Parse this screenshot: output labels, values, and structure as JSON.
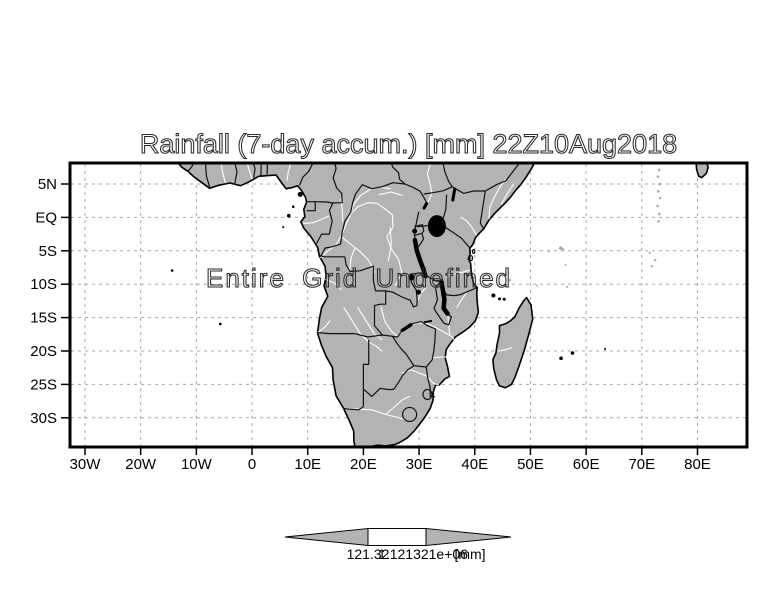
{
  "title": "Rainfall (7-day accum.) [mm] 22Z10Aug2018",
  "message": "Entire Grid Undefined",
  "axes": {
    "x_ticks": [
      "30W",
      "20W",
      "10W",
      "0",
      "10E",
      "20E",
      "30E",
      "40E",
      "50E",
      "60E",
      "70E",
      "80E"
    ],
    "y_ticks": [
      "5N",
      "EQ",
      "5S",
      "10S",
      "15S",
      "20S",
      "25S",
      "30S"
    ]
  },
  "colorbar": {
    "low_label": "121.32",
    "high_label": "1.121321e+06",
    "units": "[mm]"
  },
  "colors": {
    "land": "#b3b3b3",
    "ocean": "#ffffff",
    "grid": "#a8a8a8",
    "frame": "#000000",
    "coast": "#000000",
    "borders": "#111111",
    "rivers": "#ffffff",
    "lakes": "#000000",
    "islands_speckle": "#a8a8a8",
    "text": "#000000"
  }
}
